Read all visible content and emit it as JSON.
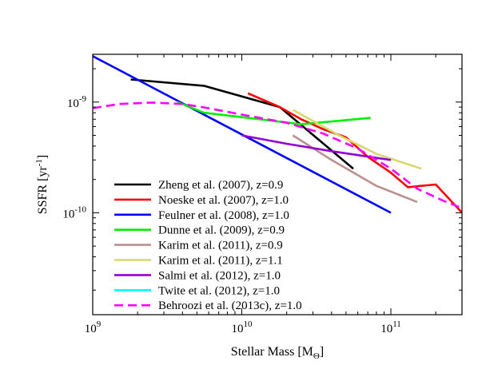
{
  "chart_data": {
    "type": "line",
    "title": "",
    "xlabel": "Stellar Mass [M",
    "xlabel_sub": "Θ",
    "xlabel_close": "]",
    "ylabel": "SSFR [yr",
    "ylabel_sup": "-1",
    "ylabel_close": "]",
    "xscale": "log",
    "yscale": "log",
    "xlim": [
      1000000000.0,
      300000000000.0
    ],
    "ylim": [
      1.2e-11,
      2.7e-09
    ],
    "x_ticks": [
      {
        "value": 1000000000.0,
        "base": "10",
        "exp": "9"
      },
      {
        "value": 10000000000.0,
        "base": "10",
        "exp": "10"
      },
      {
        "value": 100000000000.0,
        "base": "10",
        "exp": "11"
      }
    ],
    "y_ticks": [
      {
        "value": 1e-10,
        "base": "10",
        "exp": "-10"
      },
      {
        "value": 1e-09,
        "base": "10",
        "exp": "-9"
      }
    ],
    "grid": false,
    "legend_position": "bottom-left",
    "series": [
      {
        "name": "Zheng et al. (2007), z=0.9",
        "color": "#000000",
        "dash": "solid",
        "x": [
          1800000000.0,
          5600000000.0,
          18000000000.0,
          56000000000.0
        ],
        "y": [
          1.6e-09,
          1.4e-09,
          9e-10,
          2.5e-10
        ]
      },
      {
        "name": "Noeske et al. (2007), z=1.0",
        "color": "#ff0000",
        "dash": "solid",
        "x": [
          11000000000.0,
          18000000000.0,
          25000000000.0,
          35000000000.0,
          50000000000.0,
          70000000000.0,
          100000000000.0,
          130000000000.0,
          160000000000.0,
          200000000000.0,
          300000000000.0
        ],
        "y": [
          1.2e-09,
          9e-10,
          7e-10,
          5.7e-10,
          4.8e-10,
          3.2e-10,
          2.3e-10,
          1.7e-10,
          1.75e-10,
          1.8e-10,
          1e-10
        ]
      },
      {
        "name": "Feulner et al. (2008), z=1.0",
        "color": "#0000ff",
        "dash": "solid",
        "x": [
          1000000000.0,
          100000000000.0
        ],
        "y": [
          2.6e-09,
          1e-10
        ]
      },
      {
        "name": "Dunne et al. (2009), z=0.9",
        "color": "#00ee00",
        "dash": "solid",
        "x": [
          3700000000.0,
          5600000000.0,
          11000000000.0,
          25000000000.0,
          73000000000.0
        ],
        "y": [
          1e-09,
          8e-10,
          7.2e-10,
          6.3e-10,
          7.2e-10
        ]
      },
      {
        "name": "Karim et al. (2011), z=0.9",
        "color": "#bc8f8f",
        "dash": "solid",
        "x": [
          22000000000.0,
          40000000000.0,
          80000000000.0,
          150000000000.0
        ],
        "y": [
          5e-10,
          3e-10,
          1.75e-10,
          1.25e-10
        ]
      },
      {
        "name": "Karim et al. (2011), z=1.1",
        "color": "#d8d86a",
        "dash": "solid",
        "x": [
          22000000000.0,
          45000000000.0,
          80000000000.0,
          160000000000.0
        ],
        "y": [
          8.5e-10,
          5e-10,
          3.4e-10,
          2.5e-10
        ]
      },
      {
        "name": "Salmi et al. (2012), z=1.0",
        "color": "#9400d3",
        "dash": "solid",
        "x": [
          10000000000.0,
          20000000000.0,
          40000000000.0,
          100000000000.0
        ],
        "y": [
          5e-10,
          4.2e-10,
          3.6e-10,
          3e-10
        ]
      },
      {
        "name": "Twite et al. (2012), z=1.0",
        "color": "#00ffff",
        "dash": "solid",
        "x": [],
        "y": []
      },
      {
        "name": "Behroozi et al. (2013c), z=1.0",
        "color": "#ff00ff",
        "dash": "dashed",
        "x": [
          1000000000.0,
          1500000000.0,
          2500000000.0,
          4000000000.0,
          6000000000.0,
          10000000000.0,
          20000000000.0,
          35000000000.0,
          60000000000.0,
          100000000000.0,
          150000000000.0,
          220000000000.0,
          300000000000.0
        ],
        "y": [
          8.8e-10,
          9.6e-10,
          9.9e-10,
          9.6e-10,
          8.8e-10,
          7.7e-10,
          6.5e-10,
          5.2e-10,
          3.8e-10,
          2.5e-10,
          1.65e-10,
          1.3e-10,
          1.1e-10
        ]
      }
    ]
  }
}
